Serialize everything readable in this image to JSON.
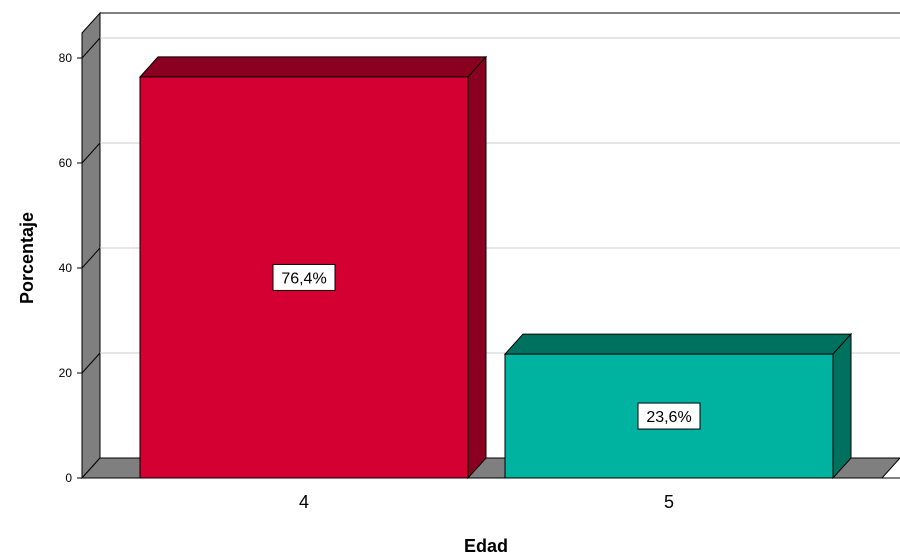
{
  "chart_data": {
    "type": "bar",
    "categories": [
      "4",
      "5"
    ],
    "values": [
      76.4,
      23.6
    ],
    "data_labels": [
      "76,4%",
      "23,6%"
    ],
    "xlabel": "Edad",
    "ylabel": "Porcentaje",
    "ylim": [
      0,
      80
    ],
    "yticks": [
      "0",
      "20",
      "40",
      "60",
      "80"
    ],
    "grid": true,
    "style_3d": true,
    "colors": {
      "bars": [
        "#d50032",
        "#00b2a0"
      ],
      "bars_top": [
        "#8a0020",
        "#00705f"
      ],
      "bars_side": [
        "#8a0020",
        "#00705f"
      ],
      "wall_side": "#7f7f7f",
      "floor": "#7f7f7f",
      "gridline": "#cccccc",
      "label_bg": "#ffffff"
    }
  }
}
